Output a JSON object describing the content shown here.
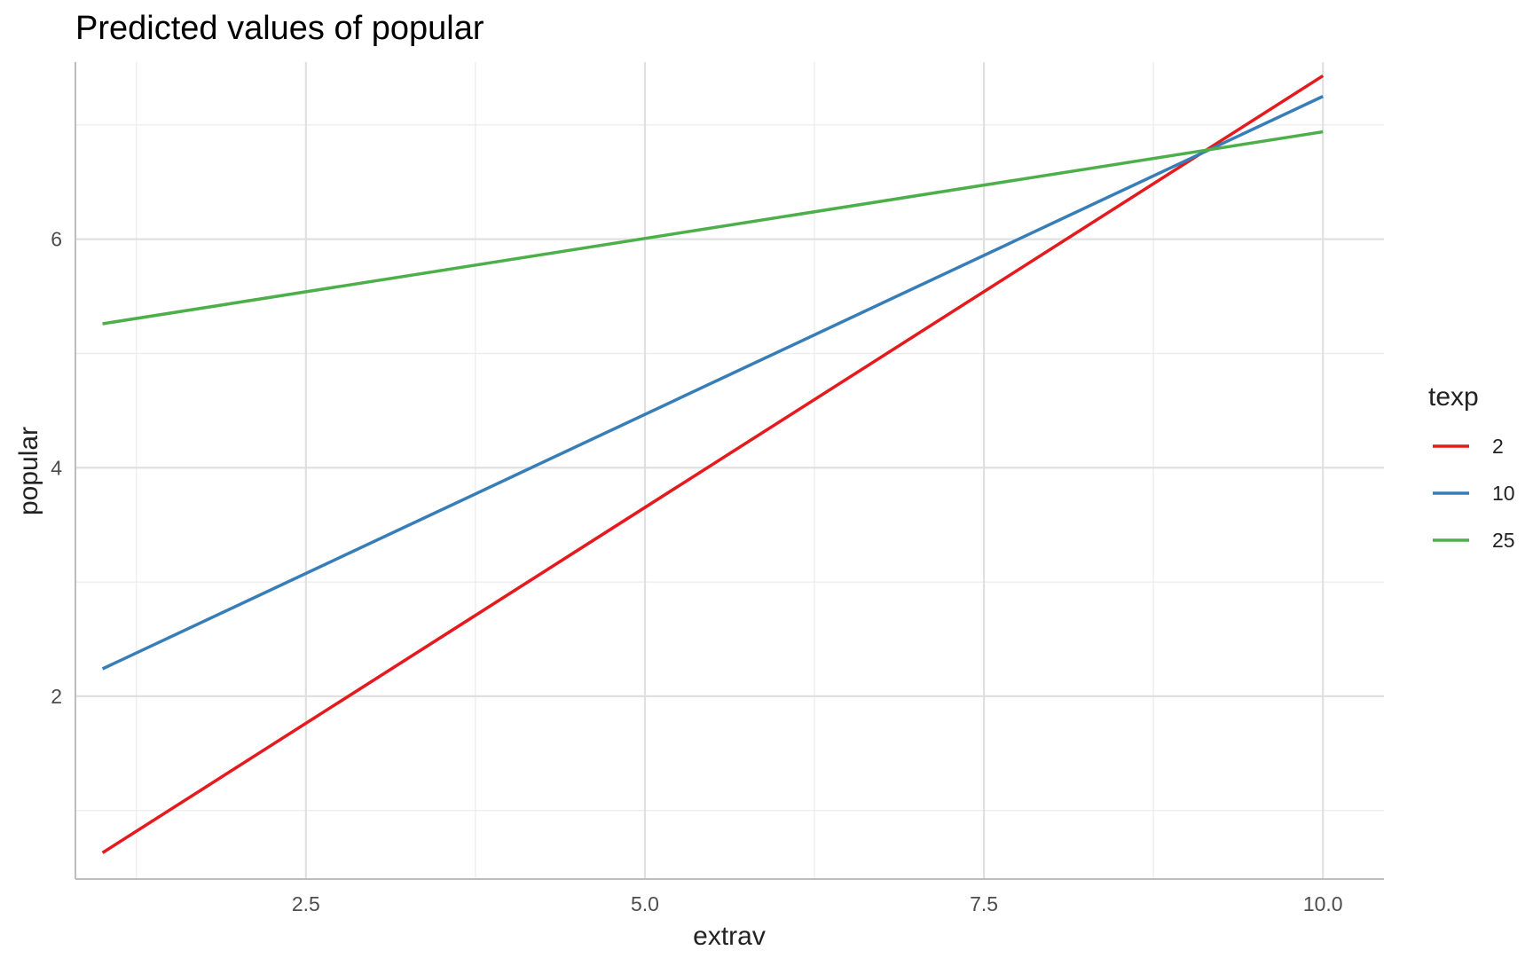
{
  "chart_data": {
    "type": "line",
    "title": "Predicted values of popular",
    "xlabel": "extrav",
    "ylabel": "popular",
    "xlim": [
      0.8,
      10.45
    ],
    "ylim": [
      0.4,
      7.55
    ],
    "x_ticks": [
      2.5,
      5.0,
      7.5,
      10.0
    ],
    "x_tick_labels": [
      "2.5",
      "5.0",
      "7.5",
      "10.0"
    ],
    "y_ticks": [
      2,
      4,
      6
    ],
    "y_tick_labels": [
      "2",
      "4",
      "6"
    ],
    "grid": true,
    "legend_position": "right",
    "legend_title": "texp",
    "x": [
      1,
      10
    ],
    "series": [
      {
        "name": "2",
        "color": "#e41a1c",
        "values": [
          0.63,
          7.43
        ]
      },
      {
        "name": "10",
        "color": "#377eb8",
        "values": [
          2.24,
          7.25
        ]
      },
      {
        "name": "25",
        "color": "#4daf4a",
        "values": [
          5.26,
          6.94
        ]
      }
    ]
  }
}
